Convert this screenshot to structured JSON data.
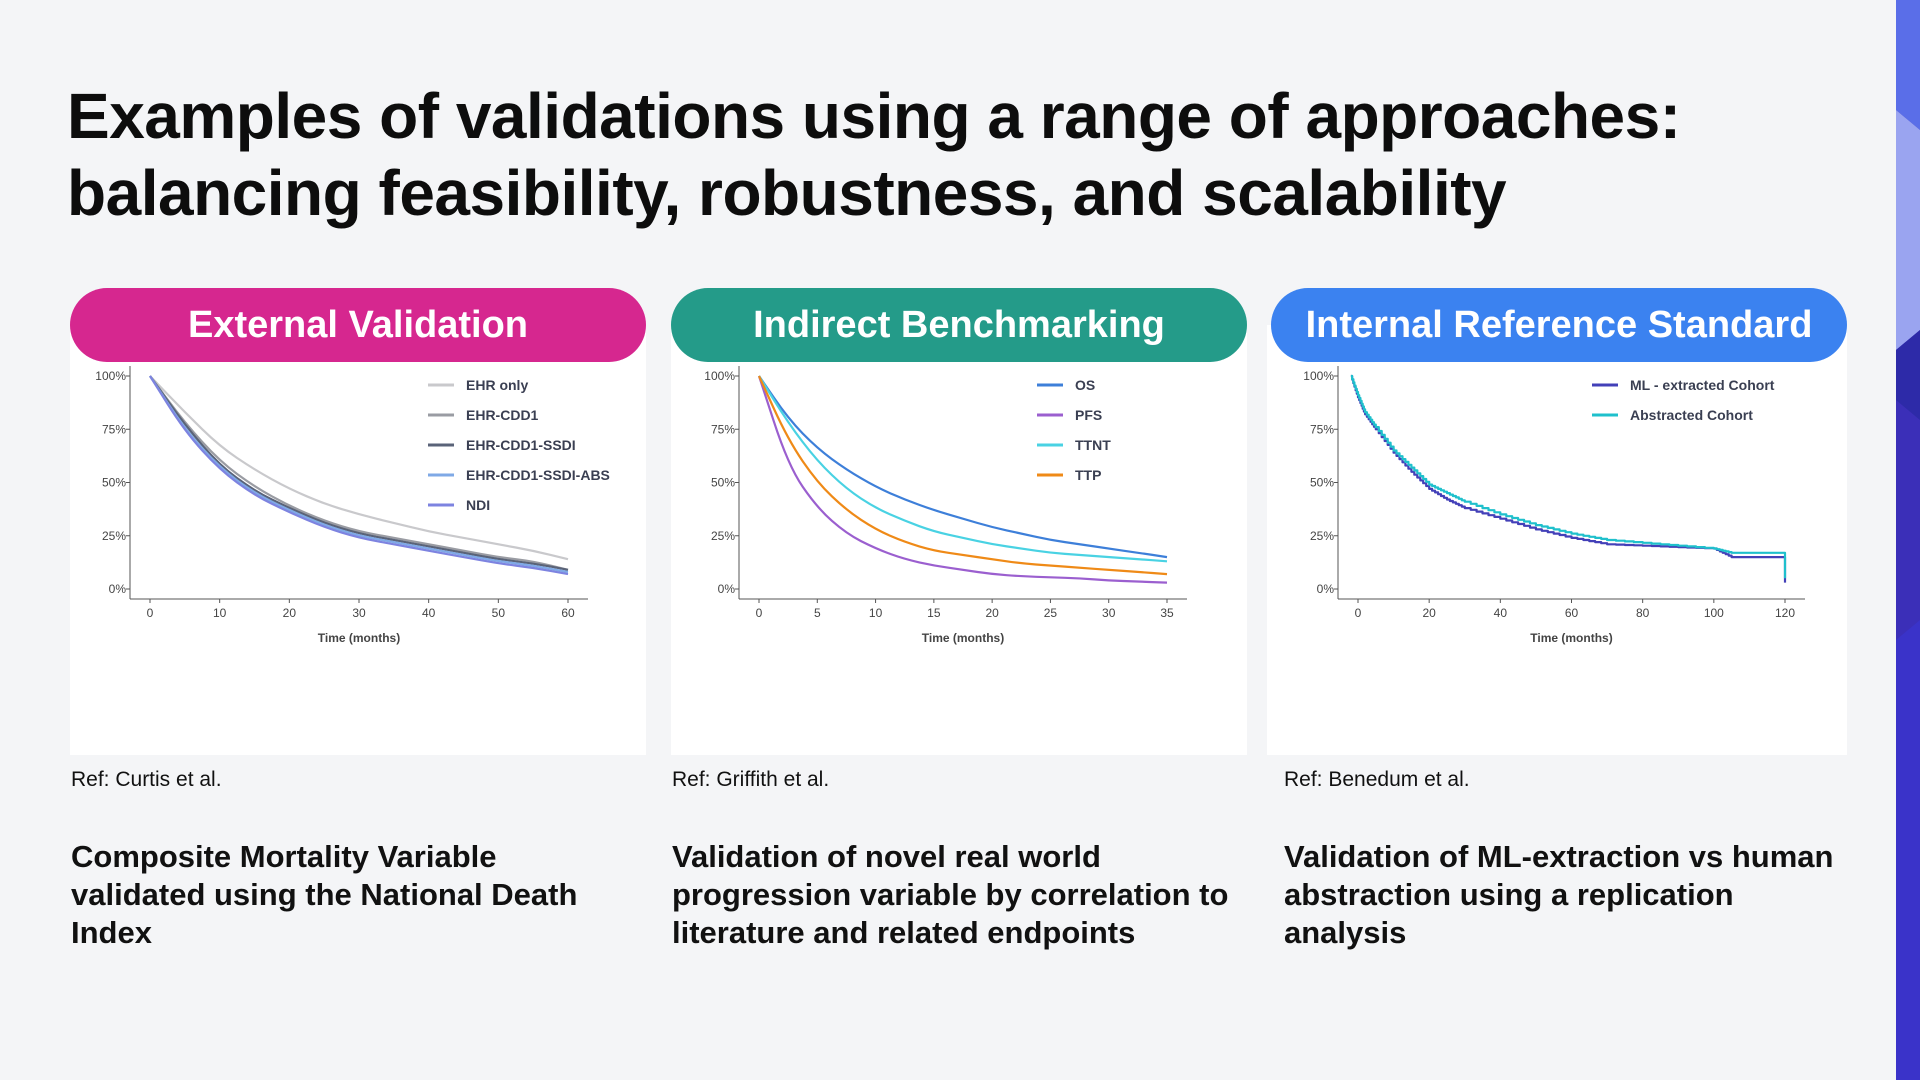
{
  "title": {
    "line1": "Examples of validations using a range of approaches:",
    "line2": "balancing feasibility, robustness, and scalability"
  },
  "colors": {
    "external": "#d6278f",
    "indirect": "#249b89",
    "internal": "#3b82f0"
  },
  "panels": [
    {
      "heading": "External Validation",
      "ref": "Ref: Curtis et al.",
      "description": "Composite Mortality Variable validated using the National Death Index"
    },
    {
      "heading": "Indirect Benchmarking",
      "ref": "Ref: Griffith et al.",
      "description": "Validation of novel real world progression variable by correlation to literature and related endpoints"
    },
    {
      "heading": "Internal Reference Standard",
      "ref": "Ref: Benedum et al.",
      "description": "Validation of ML-extraction vs human abstraction using a replication analysis"
    }
  ],
  "chart_data": [
    {
      "type": "line",
      "xlabel": "Time (months)",
      "ylabel": "",
      "xlim": [
        0,
        60
      ],
      "ylim": [
        0,
        100
      ],
      "xticks": [
        0,
        10,
        20,
        30,
        40,
        50,
        60
      ],
      "yticks": [
        0,
        25,
        50,
        75,
        100
      ],
      "ytick_labels": [
        "0%",
        "25%",
        "50%",
        "75%",
        "100%"
      ],
      "legend_position": "top-right",
      "series": [
        {
          "name": "EHR only",
          "color": "#c9c9cc",
          "x": [
            0,
            5,
            10,
            15,
            20,
            25,
            30,
            35,
            40,
            45,
            50,
            55,
            60
          ],
          "y": [
            100,
            83,
            67,
            56,
            47,
            40,
            35,
            31,
            27,
            24,
            21,
            18,
            14
          ]
        },
        {
          "name": "EHR-CDD1",
          "color": "#9a9ca3",
          "x": [
            0,
            5,
            10,
            15,
            20,
            25,
            30,
            35,
            40,
            45,
            50,
            55,
            60
          ],
          "y": [
            100,
            78,
            60,
            48,
            39,
            32,
            27,
            24,
            21,
            18,
            15,
            13,
            9
          ]
        },
        {
          "name": "EHR-CDD1-SSDI",
          "color": "#5a6378",
          "x": [
            0,
            5,
            10,
            15,
            20,
            25,
            30,
            35,
            40,
            45,
            50,
            55,
            60
          ],
          "y": [
            100,
            77,
            58,
            46,
            38,
            31,
            26,
            23,
            20,
            17,
            14,
            12,
            9
          ]
        },
        {
          "name": "EHR-CDD1-SSDI-ABS",
          "color": "#7fa9e6",
          "x": [
            0,
            5,
            10,
            15,
            20,
            25,
            30,
            35,
            40,
            45,
            50,
            55,
            60
          ],
          "y": [
            100,
            75,
            57,
            45,
            37,
            30,
            25,
            22,
            19,
            16,
            13,
            11,
            8
          ]
        },
        {
          "name": "NDI",
          "color": "#7d83e0",
          "x": [
            0,
            5,
            10,
            15,
            20,
            25,
            30,
            35,
            40,
            45,
            50,
            55,
            60
          ],
          "y": [
            100,
            74,
            56,
            44,
            36,
            29,
            24,
            21,
            18,
            15,
            12,
            10,
            7
          ]
        }
      ]
    },
    {
      "type": "line",
      "xlabel": "Time (months)",
      "ylabel": "",
      "xlim": [
        0,
        35
      ],
      "ylim": [
        0,
        100
      ],
      "xticks": [
        0,
        5,
        10,
        15,
        20,
        25,
        30,
        35
      ],
      "yticks": [
        0,
        25,
        50,
        75,
        100
      ],
      "ytick_labels": [
        "0%",
        "25%",
        "50%",
        "75%",
        "100%"
      ],
      "legend_position": "top-right",
      "series": [
        {
          "name": "OS",
          "color": "#3d7fd9",
          "x": [
            0,
            2.5,
            5,
            7.5,
            10,
            12.5,
            15,
            17.5,
            20,
            22.5,
            25,
            27.5,
            30,
            32.5,
            35
          ],
          "y": [
            100,
            80,
            66,
            56,
            48,
            42,
            37,
            33,
            29,
            26,
            23,
            21,
            19,
            17,
            15
          ]
        },
        {
          "name": "PFS",
          "color": "#9b5fcf",
          "x": [
            0,
            2.5,
            5,
            7.5,
            10,
            12.5,
            15,
            17.5,
            20,
            22.5,
            25,
            27.5,
            30,
            32.5,
            35
          ],
          "y": [
            100,
            58,
            38,
            26,
            19,
            14,
            11,
            9,
            7,
            6,
            5.5,
            5,
            4,
            3.5,
            3
          ]
        },
        {
          "name": "TTNT",
          "color": "#49d2e3",
          "x": [
            0,
            2.5,
            5,
            7.5,
            10,
            12.5,
            15,
            17.5,
            20,
            22.5,
            25,
            27.5,
            30,
            32.5,
            35
          ],
          "y": [
            100,
            78,
            60,
            47,
            38,
            32,
            27,
            24,
            21,
            19,
            17,
            16,
            15,
            14,
            13
          ]
        },
        {
          "name": "TTP",
          "color": "#ef8a17",
          "x": [
            0,
            2.5,
            5,
            7.5,
            10,
            12.5,
            15,
            17.5,
            20,
            22.5,
            25,
            27.5,
            30,
            32.5,
            35
          ],
          "y": [
            100,
            70,
            50,
            37,
            28,
            22,
            18,
            16,
            14,
            12,
            11,
            10,
            9,
            8,
            7
          ]
        }
      ]
    },
    {
      "type": "line",
      "xlabel": "Time (months)",
      "ylabel": "",
      "xlim": [
        0,
        120
      ],
      "ylim": [
        0,
        100
      ],
      "xticks": [
        0,
        20,
        40,
        60,
        80,
        100,
        120
      ],
      "yticks": [
        0,
        25,
        50,
        75,
        100
      ],
      "ytick_labels": [
        "0%",
        "25%",
        "50%",
        "75%",
        "100%"
      ],
      "legend_position": "top-right",
      "series": [
        {
          "name": "ML - extracted Cohort",
          "color": "#4340b8",
          "x": [
            -2,
            0,
            2,
            5,
            10,
            15,
            20,
            25,
            30,
            40,
            50,
            60,
            70,
            85,
            100,
            105,
            120,
            120
          ],
          "y": [
            100,
            90,
            82,
            75,
            64,
            55,
            47,
            42,
            38,
            33,
            28,
            24,
            21,
            20,
            19,
            15,
            15,
            3
          ]
        },
        {
          "name": "Abstracted Cohort",
          "color": "#1fc0cc",
          "x": [
            -2,
            0,
            2,
            5,
            10,
            15,
            20,
            25,
            30,
            40,
            50,
            60,
            70,
            85,
            100,
            105,
            120,
            120
          ],
          "y": [
            100,
            91,
            83,
            76,
            65,
            57,
            49,
            45,
            41,
            35,
            30,
            26,
            23,
            21,
            19,
            17,
            17,
            5
          ]
        }
      ]
    }
  ]
}
